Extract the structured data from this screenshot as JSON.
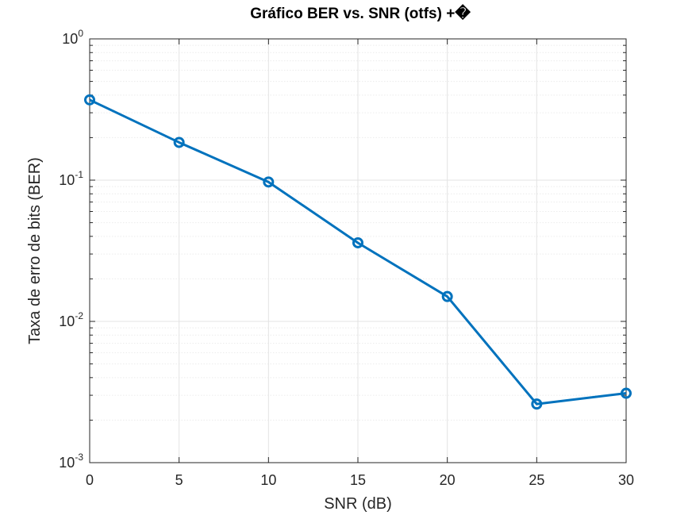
{
  "chart_data": {
    "type": "line",
    "title": "Gráfico BER vs. SNR (otfs) +�",
    "xlabel": "SNR (dB)",
    "ylabel": "Taxa de erro de bits (BER)",
    "x": [
      0,
      5,
      10,
      15,
      20,
      25,
      30
    ],
    "series": [
      {
        "values": [
          0.37,
          0.185,
          0.097,
          0.036,
          0.015,
          0.0026,
          0.0031
        ]
      }
    ],
    "xlim": [
      0,
      30
    ],
    "ylim": [
      0.001,
      1
    ],
    "yscale": "log",
    "xticks": [
      "0",
      "5",
      "10",
      "15",
      "20",
      "25",
      "30"
    ],
    "yticks": [
      {
        "base": "10",
        "exp": "0"
      },
      {
        "base": "10",
        "exp": "-1"
      },
      {
        "base": "10",
        "exp": "-2"
      },
      {
        "base": "10",
        "exp": "-3"
      }
    ],
    "grid": true,
    "marker": "circle",
    "line_color": "#0072bd",
    "grid_color": "#e3e3e3",
    "axis_color": "#262626"
  }
}
